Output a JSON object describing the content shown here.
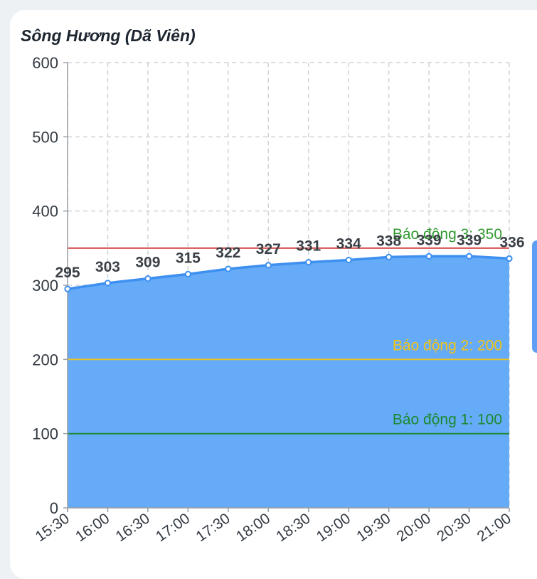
{
  "chart_data": {
    "type": "area",
    "title": "Sông Hương (Dã Viên)",
    "xlabel": "",
    "ylabel": "",
    "ylim": [
      0,
      600
    ],
    "yticks": [
      0,
      100,
      200,
      300,
      400,
      500,
      600
    ],
    "grid": true,
    "categories": [
      "15:30",
      "16:00",
      "16:30",
      "17:00",
      "17:30",
      "18:00",
      "18:30",
      "19:00",
      "19:30",
      "20:00",
      "20:30",
      "21:00"
    ],
    "values": [
      295,
      303,
      309,
      315,
      322,
      327,
      331,
      334,
      338,
      339,
      339,
      336
    ],
    "series_color": "#3d8ff0",
    "fill_color": "#66abf7",
    "thresholds": [
      {
        "label": "Báo động 1: 100",
        "value": 100,
        "color": "#1a8a2f"
      },
      {
        "label": "Báo động 2: 200",
        "value": 200,
        "color": "#f0c419"
      },
      {
        "label": "Báo động 3: 350",
        "value": 350,
        "color": "#d23a3a",
        "text_color": "#2f9a2f"
      }
    ]
  }
}
